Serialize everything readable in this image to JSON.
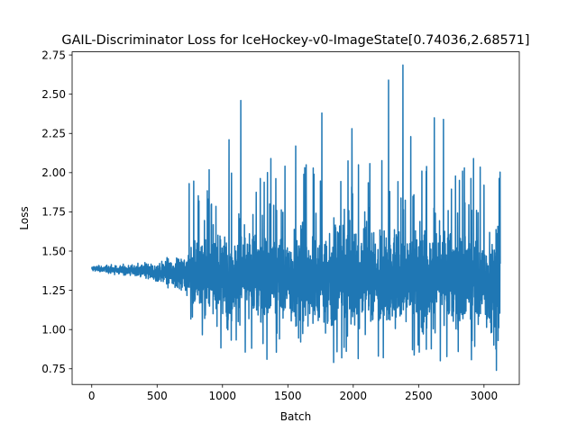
{
  "chart_data": {
    "type": "line",
    "title": "GAIL-Discriminator Loss for IceHockey-v0-ImageState[0.74036,2.68571]",
    "xlabel": "Batch",
    "ylabel": "Loss",
    "xlim": [
      -150,
      3270
    ],
    "ylim": [
      0.65,
      2.77
    ],
    "x_ticks": [
      0,
      500,
      1000,
      1500,
      2000,
      2500,
      3000
    ],
    "x_tick_labels": [
      "0",
      "500",
      "1000",
      "1500",
      "2000",
      "2500",
      "3000"
    ],
    "y_ticks": [
      0.75,
      1.0,
      1.25,
      1.5,
      1.75,
      2.0,
      2.25,
      2.5,
      2.75
    ],
    "y_tick_labels": [
      "0.75",
      "1.00",
      "1.25",
      "1.50",
      "1.75",
      "2.00",
      "2.25",
      "2.50",
      "2.75"
    ],
    "grid": false,
    "series_color": "#1f77b4",
    "n_points": 3125,
    "min": 0.74036,
    "max": 2.68571,
    "envelope": [
      {
        "x": 0,
        "low": 1.37,
        "high": 1.41
      },
      {
        "x": 300,
        "low": 1.33,
        "high": 1.42
      },
      {
        "x": 500,
        "low": 1.28,
        "high": 1.45
      },
      {
        "x": 700,
        "low": 1.22,
        "high": 1.5
      },
      {
        "x": 800,
        "low": 1.05,
        "high": 1.65
      },
      {
        "x": 1000,
        "low": 0.98,
        "high": 1.7
      },
      {
        "x": 1500,
        "low": 0.95,
        "high": 1.72
      },
      {
        "x": 2000,
        "low": 0.93,
        "high": 1.75
      },
      {
        "x": 2500,
        "low": 0.92,
        "high": 1.75
      },
      {
        "x": 3124,
        "low": 0.9,
        "high": 1.7
      }
    ],
    "spikes": [
      {
        "x": 745,
        "y": 1.93
      },
      {
        "x": 820,
        "y": 1.82
      },
      {
        "x": 1050,
        "y": 2.21
      },
      {
        "x": 1140,
        "y": 2.46
      },
      {
        "x": 1340,
        "y": 0.81
      },
      {
        "x": 1370,
        "y": 2.09
      },
      {
        "x": 1560,
        "y": 2.17
      },
      {
        "x": 1640,
        "y": 2.05
      },
      {
        "x": 1700,
        "y": 1.99
      },
      {
        "x": 1760,
        "y": 2.38
      },
      {
        "x": 1850,
        "y": 0.79
      },
      {
        "x": 1990,
        "y": 2.28
      },
      {
        "x": 2040,
        "y": 2.05
      },
      {
        "x": 2230,
        "y": 0.82
      },
      {
        "x": 2270,
        "y": 2.59
      },
      {
        "x": 2380,
        "y": 2.68571
      },
      {
        "x": 2440,
        "y": 2.23
      },
      {
        "x": 2620,
        "y": 2.35
      },
      {
        "x": 2690,
        "y": 2.34
      },
      {
        "x": 2850,
        "y": 2.03
      },
      {
        "x": 2920,
        "y": 2.09
      },
      {
        "x": 3000,
        "y": 1.92
      },
      {
        "x": 3095,
        "y": 0.74036
      }
    ]
  }
}
